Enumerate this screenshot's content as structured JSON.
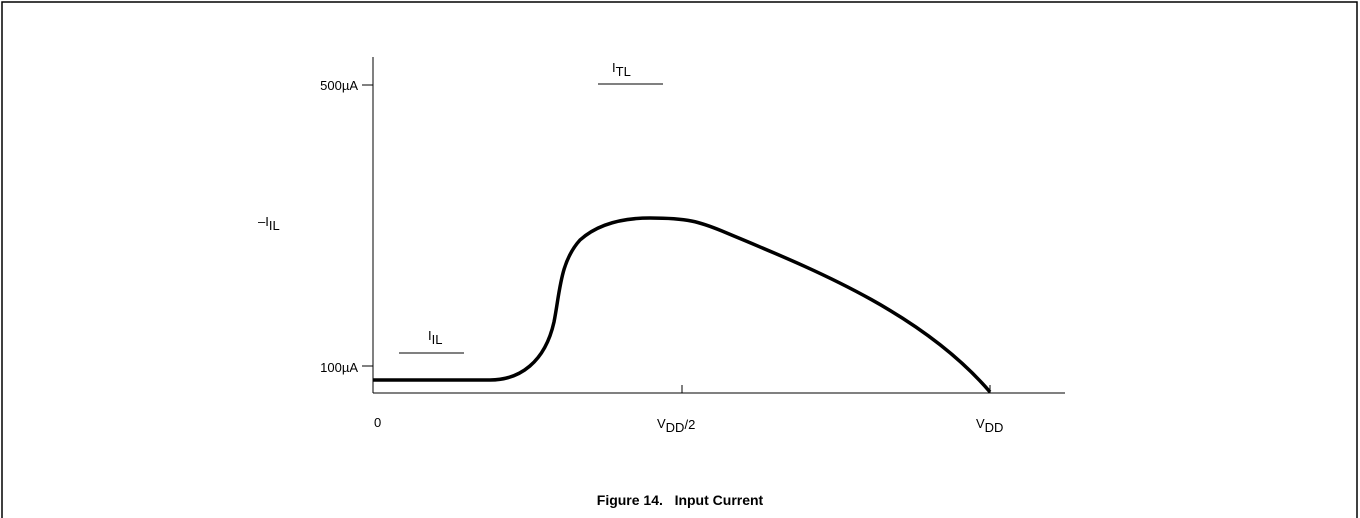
{
  "y_ticks": [
    "500µA",
    "100µA"
  ],
  "y_label": {
    "main": "–I",
    "sub": "IL"
  },
  "x_ticks": [
    {
      "main": "0"
    },
    {
      "main": "V",
      "sub": "DD",
      "suffix": "/2"
    },
    {
      "main": "V",
      "sub": "DD"
    }
  ],
  "annotations": [
    {
      "main": "I",
      "sub": "TL"
    },
    {
      "main": "I",
      "sub": "IL"
    }
  ],
  "caption": "Figure 14.   Input Current"
}
